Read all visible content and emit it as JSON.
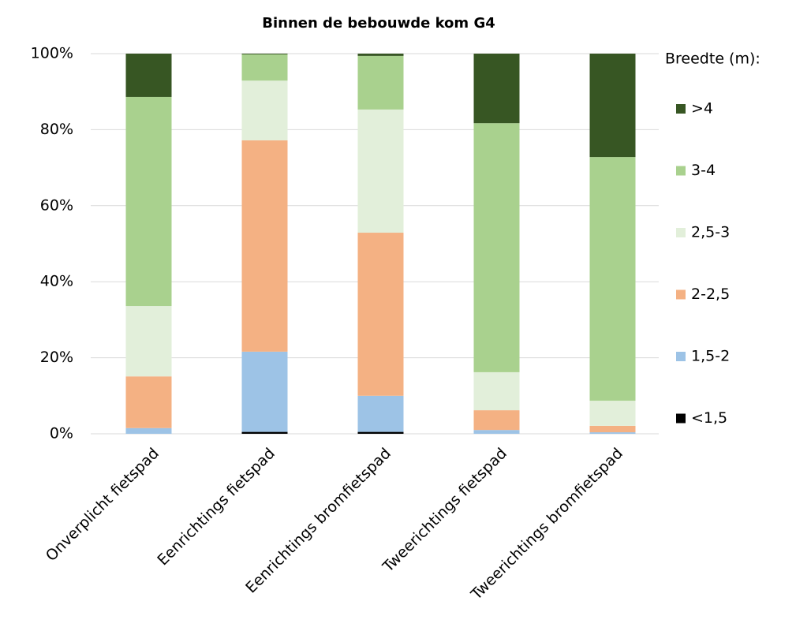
{
  "chart_data": {
    "type": "stacked_bar",
    "title": "Binnen de bebouwde kom G4",
    "legend_title": "Breedte (m):",
    "categories": [
      "Onverplicht fietspad",
      "Eenrichtings fietspad",
      "Eenrichtings bromfietspad",
      "Tweerichtings fietspad",
      "Tweerichtings bromfietspad"
    ],
    "series": [
      {
        "name": "<1,5",
        "color": "#000000",
        "values": [
          0,
          0.5,
          0.5,
          0,
          0
        ]
      },
      {
        "name": "1,5-2",
        "color": "#9dc3e6",
        "values": [
          1.5,
          21.1,
          9.5,
          1,
          0.4
        ]
      },
      {
        "name": "2-2,5",
        "color": "#f4b183",
        "values": [
          13.6,
          55.6,
          42.9,
          5.2,
          1.7
        ]
      },
      {
        "name": "2,5-3",
        "color": "#e2efda",
        "values": [
          18.5,
          15.7,
          32.4,
          10,
          6.6
        ]
      },
      {
        "name": "3-4",
        "color": "#a9d18e",
        "values": [
          55,
          6.9,
          14.1,
          65.5,
          64.1
        ]
      },
      {
        "name": ">4",
        "color": "#375623",
        "values": [
          11.4,
          0.2,
          0.6,
          18.3,
          27.2
        ]
      }
    ],
    "ylim": [
      0,
      100
    ],
    "yticks": [
      {
        "value": 0,
        "label": "0%"
      },
      {
        "value": 20,
        "label": "20%"
      },
      {
        "value": 40,
        "label": "40%"
      },
      {
        "value": 60,
        "label": "60%"
      },
      {
        "value": 80,
        "label": "80%"
      },
      {
        "value": 100,
        "label": "100%"
      }
    ],
    "grid": true,
    "legend": "right"
  }
}
